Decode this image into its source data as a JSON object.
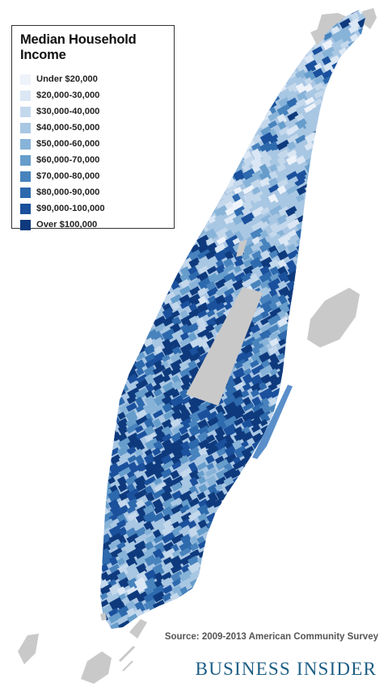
{
  "legend": {
    "title": "Median Household Income",
    "items": [
      {
        "label": "Under $20,000",
        "color": "#eef3fa"
      },
      {
        "label": "$20,000-30,000",
        "color": "#dbe7f4"
      },
      {
        "label": "$30,000-40,000",
        "color": "#c4d8ec"
      },
      {
        "label": "$40,000-50,000",
        "color": "#a8c7e3"
      },
      {
        "label": "$50,000-60,000",
        "color": "#88b3d8"
      },
      {
        "label": "$60,000-70,000",
        "color": "#669dcb"
      },
      {
        "label": "$70,000-80,000",
        "color": "#4883bd"
      },
      {
        "label": "$80,000-90,000",
        "color": "#2d69ad"
      },
      {
        "label": "$90,000-100,000",
        "color": "#1a509c"
      },
      {
        "label": "Over $100,000",
        "color": "#0e3a7d"
      }
    ]
  },
  "source": "Source: 2009-2013 American Community Survey",
  "brand": "BUSINESS INSIDER",
  "colors": {
    "park": "#c9c9c9",
    "brand": "#1d5e84"
  }
}
